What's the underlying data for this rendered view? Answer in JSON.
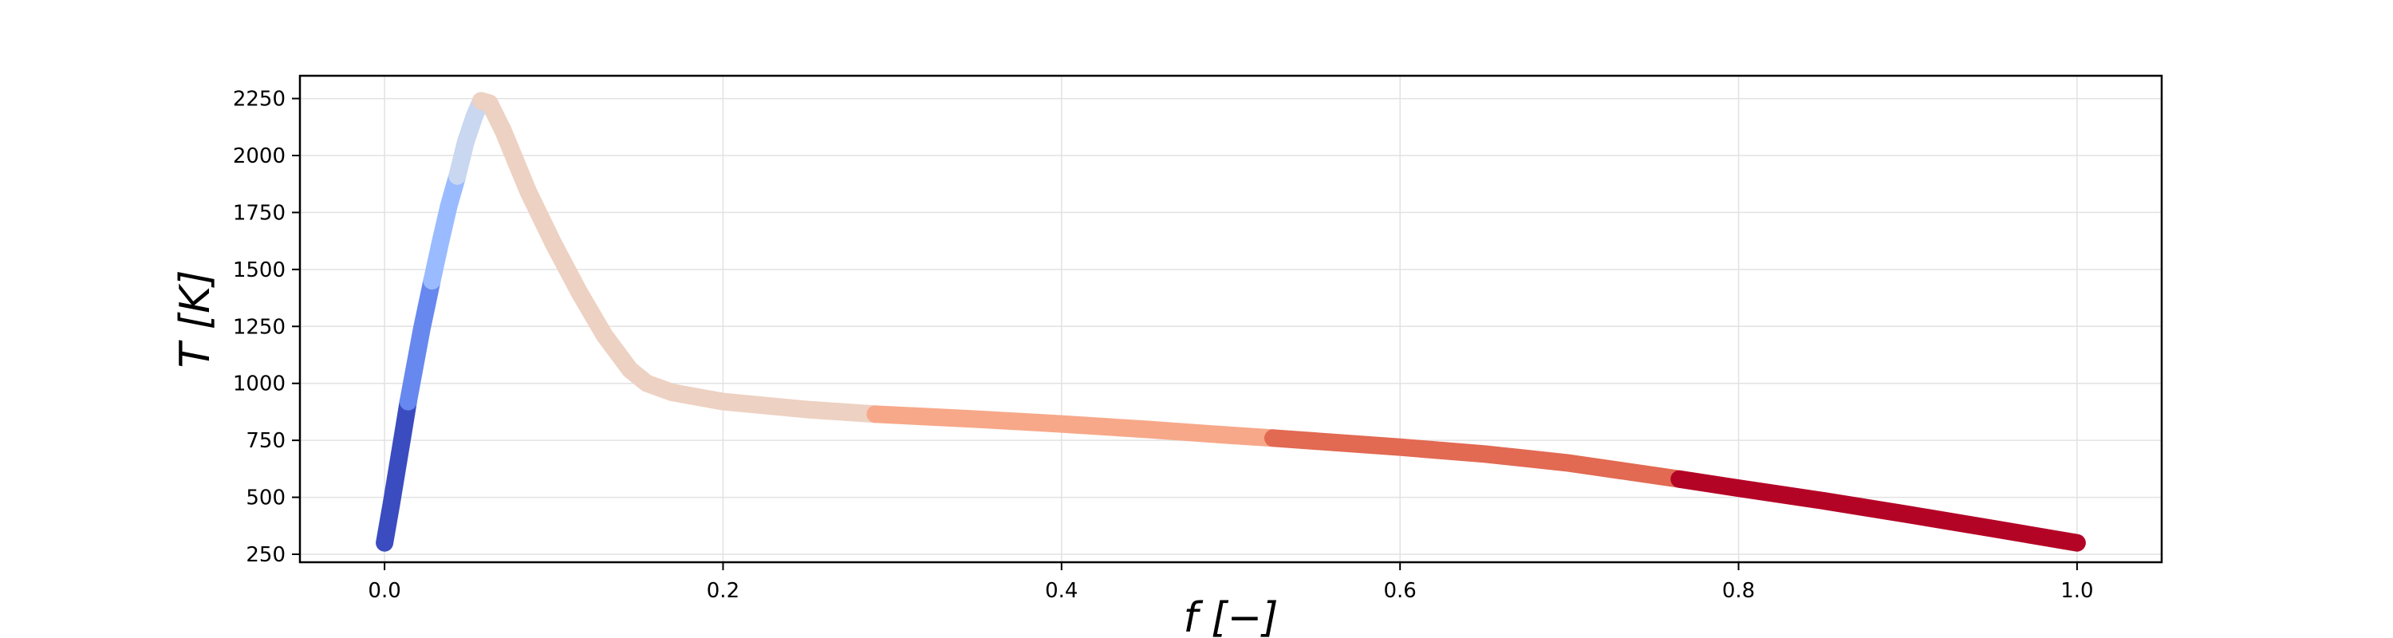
{
  "chart_data": {
    "type": "line",
    "title": "",
    "xlabel": "f [−]",
    "ylabel": "T [K]",
    "xlim": [
      -0.05,
      1.05
    ],
    "ylim": [
      215,
      2350
    ],
    "xticks": [
      0.0,
      0.2,
      0.4,
      0.6,
      0.8,
      1.0
    ],
    "xtick_labels": [
      "0.0",
      "0.2",
      "0.4",
      "0.6",
      "0.8",
      "1.0"
    ],
    "yticks": [
      250,
      500,
      750,
      1000,
      1250,
      1500,
      1750,
      2000,
      2250
    ],
    "ytick_labels": [
      "250",
      "500",
      "750",
      "1000",
      "1250",
      "1500",
      "1750",
      "2000",
      "2250"
    ],
    "grid": true,
    "legend": "none",
    "colormap": "coolwarm",
    "series": [
      {
        "color": "#3b4cc0",
        "x": [
          0.0,
          0.004,
          0.008,
          0.012,
          0.014
        ],
        "y": [
          300,
          470,
          650,
          830,
          920
        ]
      },
      {
        "color": "#6788ee",
        "x": [
          0.014,
          0.018,
          0.022,
          0.026,
          0.028
        ],
        "y": [
          920,
          1080,
          1240,
          1380,
          1450
        ]
      },
      {
        "color": "#9abbff",
        "x": [
          0.028,
          0.033,
          0.038,
          0.043
        ],
        "y": [
          1450,
          1620,
          1780,
          1910
        ]
      },
      {
        "color": "#c9d7f0",
        "x": [
          0.043,
          0.048,
          0.053,
          0.057
        ],
        "y": [
          1910,
          2060,
          2170,
          2240
        ]
      },
      {
        "color": "#edd1c2",
        "x": [
          0.057,
          0.062,
          0.07,
          0.085,
          0.1,
          0.115,
          0.13,
          0.145,
          0.155,
          0.17,
          0.2,
          0.25,
          0.29
        ],
        "y": [
          2240,
          2230,
          2110,
          1840,
          1610,
          1400,
          1210,
          1060,
          1000,
          960,
          920,
          885,
          865
        ]
      },
      {
        "color": "#f7a889",
        "x": [
          0.29,
          0.35,
          0.4,
          0.45,
          0.5,
          0.525
        ],
        "y": [
          865,
          843,
          822,
          798,
          772,
          760
        ]
      },
      {
        "color": "#e26952",
        "x": [
          0.525,
          0.6,
          0.65,
          0.7,
          0.765
        ],
        "y": [
          760,
          720,
          690,
          650,
          580
        ]
      },
      {
        "color": "#b40426",
        "x": [
          0.765,
          0.8,
          0.85,
          0.9,
          0.95,
          1.0
        ],
        "y": [
          580,
          540,
          485,
          425,
          363,
          300
        ]
      }
    ]
  }
}
